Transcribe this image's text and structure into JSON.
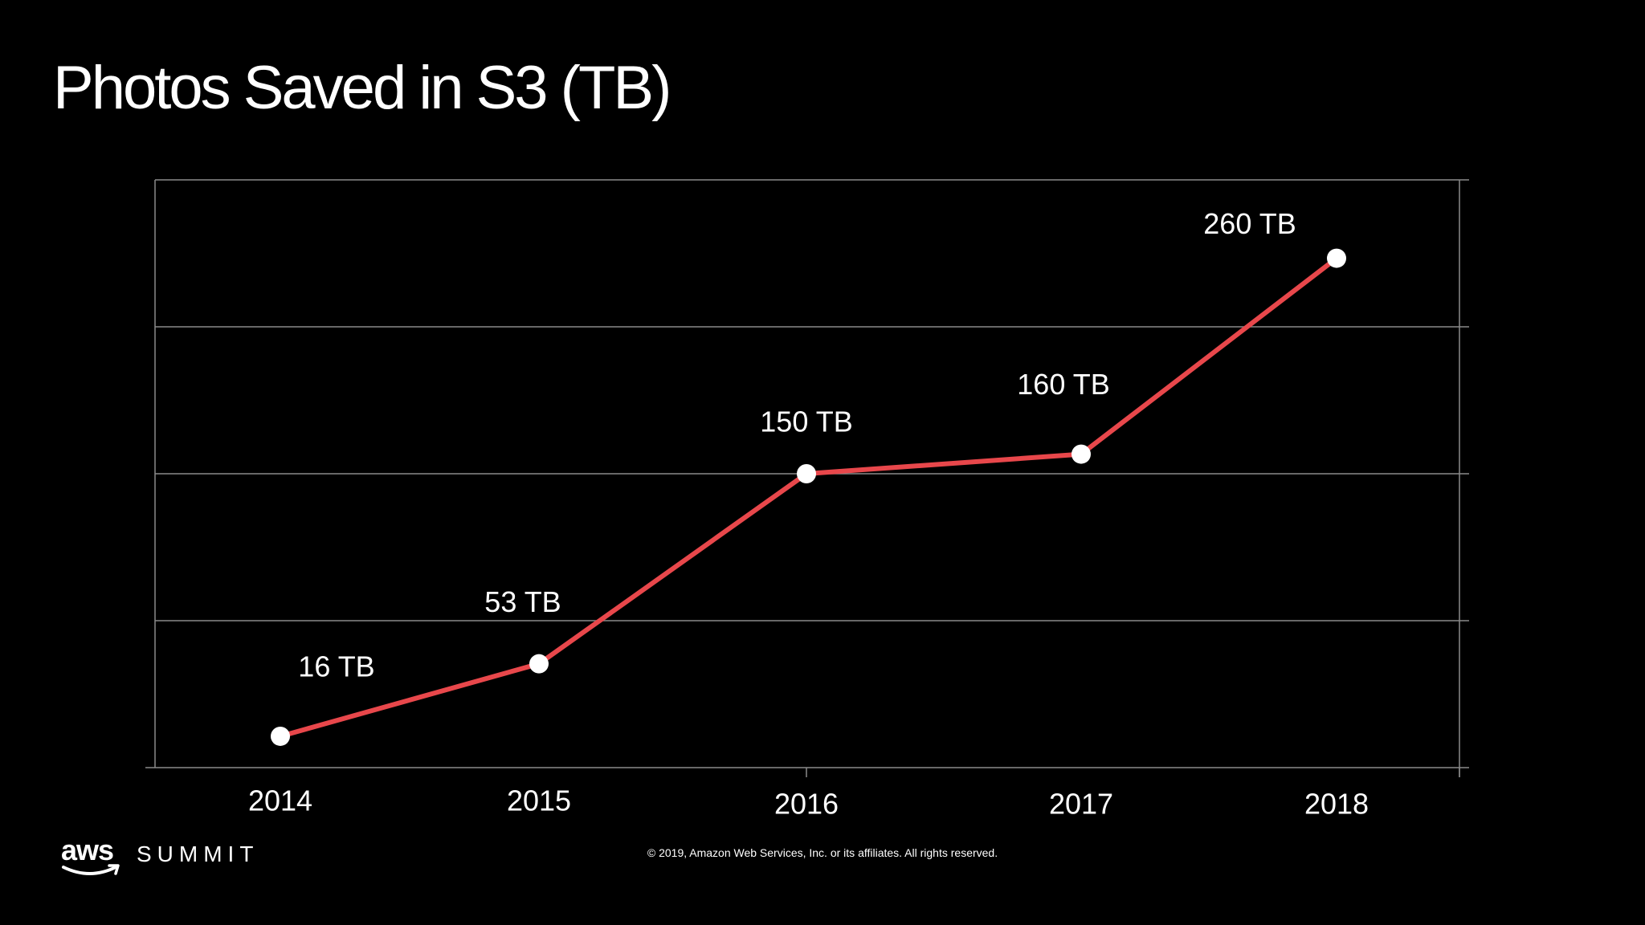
{
  "slide": {
    "title": "Photos Saved in S3 (TB)",
    "copyright": "© 2019, Amazon Web Services, Inc. or its affiliates. All rights reserved.",
    "logo": {
      "brand": "aws",
      "event": "SUMMIT"
    }
  },
  "colors": {
    "background": "#000000",
    "line": "#e8474b",
    "marker": "#ffffff",
    "grid": "#8a8a8a",
    "text": "#ffffff"
  },
  "chart_data": {
    "type": "line",
    "title": "Photos Saved in S3 (TB)",
    "xlabel": "",
    "ylabel": "",
    "categories": [
      "2014",
      "2015",
      "2016",
      "2017",
      "2018"
    ],
    "series": [
      {
        "values": [
          16,
          53,
          150,
          160,
          260
        ],
        "labels": [
          "16 TB",
          "53 TB",
          "150 TB",
          "160 TB",
          "260 TB"
        ]
      }
    ],
    "ylim": [
      0,
      300
    ],
    "grid": true,
    "legend": "none"
  }
}
